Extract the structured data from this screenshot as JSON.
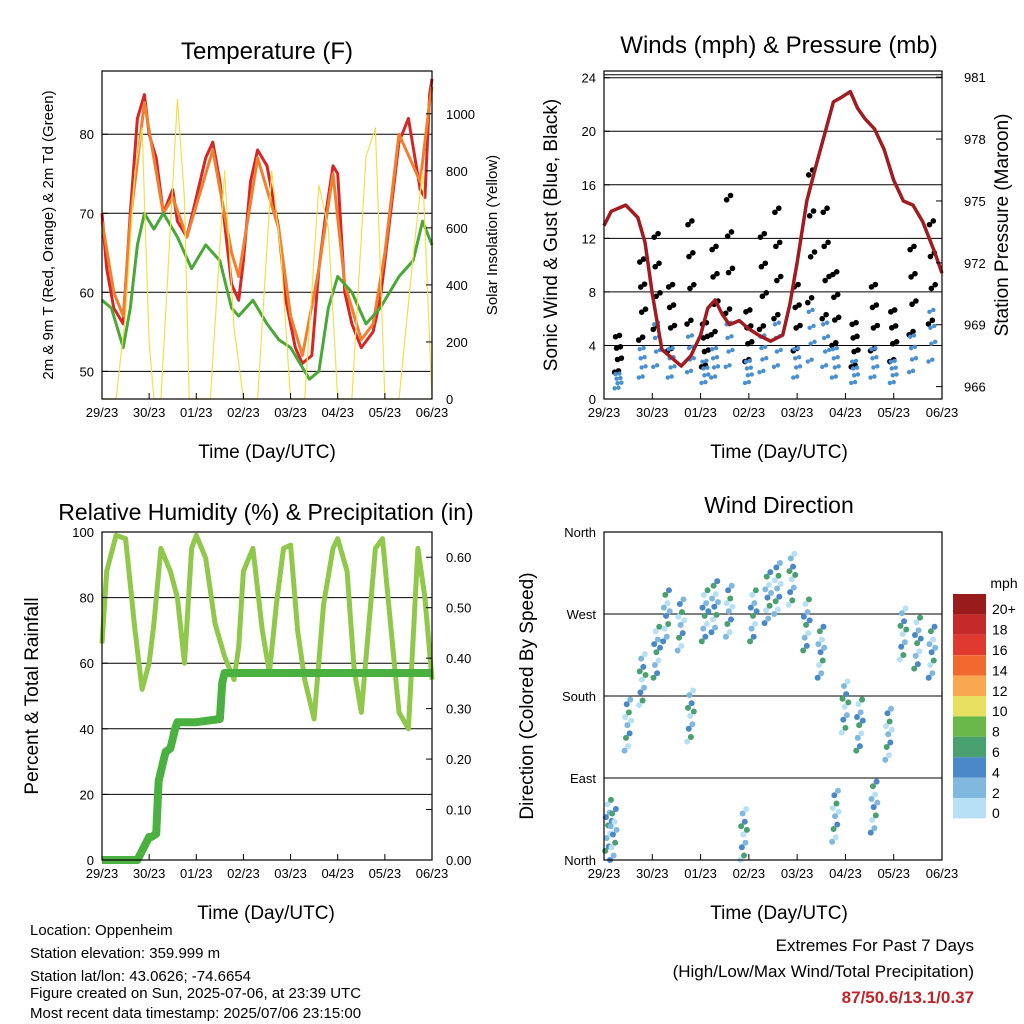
{
  "chart_data": [
    {
      "type": "line",
      "title": "Temperature (F)",
      "xlabel": "Time (Day/UTC)",
      "ylabel": "2m & 9m T (Red, Orange) & 2m Td (Green)",
      "y2label": "Solar Insolation (Yellow)",
      "x_ticks": [
        "29/23",
        "30/23",
        "01/23",
        "02/23",
        "03/23",
        "04/23",
        "05/23",
        "06/23"
      ],
      "ylim": [
        46.5,
        88
      ],
      "y_ticks": [
        50,
        60,
        70,
        80
      ],
      "y2lim": [
        0,
        1150
      ],
      "y2_ticks": [
        0,
        200,
        400,
        600,
        800,
        1000
      ],
      "grid": "horizontal",
      "series": [
        {
          "color": "#d62728",
          "x": [
            0,
            0.1,
            0.25,
            0.45,
            0.6,
            0.75,
            0.9,
            1.0,
            1.15,
            1.3,
            1.5,
            1.6,
            1.8,
            2.0,
            2.2,
            2.35,
            2.5,
            2.75,
            2.9,
            3.0,
            3.15,
            3.3,
            3.5,
            3.75,
            3.9,
            4.0,
            4.1,
            4.25,
            4.45,
            4.6,
            4.75,
            4.9,
            5.0,
            5.15,
            5.3,
            5.5,
            5.75,
            5.9,
            6.0,
            6.1,
            6.3,
            6.5,
            6.75,
            6.85,
            6.95,
            7.0
          ],
          "values": [
            70,
            63,
            58,
            56,
            70,
            82,
            85,
            80,
            77,
            70,
            73,
            69,
            67,
            72,
            77,
            79,
            74,
            61,
            59,
            64,
            74,
            78,
            76,
            68,
            59,
            56,
            53,
            51,
            52,
            63,
            70,
            76,
            75,
            60,
            56,
            53,
            55,
            59,
            64,
            69,
            79,
            82,
            73,
            72,
            85,
            87
          ]
        },
        {
          "color": "#f08030",
          "x": [
            0,
            0.25,
            0.45,
            0.6,
            0.9,
            1.3,
            1.5,
            1.8,
            2.35,
            2.75,
            2.9,
            3.3,
            3.75,
            4.0,
            4.25,
            4.6,
            4.9,
            5.15,
            5.5,
            5.75,
            6.0,
            6.3,
            6.75,
            6.95,
            7.0
          ],
          "values": [
            69,
            60,
            57,
            69,
            84,
            70,
            72,
            67,
            78,
            65,
            62,
            77,
            68,
            57,
            52,
            63,
            75,
            61,
            54,
            56,
            65,
            80,
            74,
            84,
            86
          ]
        },
        {
          "color": "#4aa838",
          "x": [
            0,
            0.2,
            0.45,
            0.6,
            0.75,
            0.9,
            1.1,
            1.3,
            1.6,
            1.9,
            2.2,
            2.5,
            2.75,
            2.9,
            3.2,
            3.5,
            3.75,
            4.0,
            4.2,
            4.4,
            4.6,
            4.8,
            5.0,
            5.3,
            5.6,
            5.9,
            6.1,
            6.3,
            6.6,
            6.8,
            7.0
          ],
          "values": [
            59,
            58,
            53,
            58,
            66,
            70,
            68,
            70,
            67,
            63,
            66,
            64,
            58,
            57,
            59,
            56,
            54,
            53,
            51,
            49,
            50,
            58,
            62,
            60,
            56,
            58,
            60,
            62,
            64,
            69,
            66
          ]
        },
        {
          "color": "#f0e050",
          "x": [
            0,
            0.3,
            0.5,
            0.7,
            0.85,
            1.0,
            1.1,
            1.25,
            1.45,
            1.6,
            1.75,
            1.85,
            2.0,
            2.3,
            2.6,
            2.8,
            3.0,
            3.3,
            3.6,
            3.8,
            4.0,
            4.3,
            4.6,
            4.8,
            5.0,
            5.3,
            5.6,
            5.8,
            6.0,
            6.3,
            6.6,
            6.8,
            7.0
          ],
          "values": [
            0,
            0,
            300,
            800,
            950,
            200,
            0,
            0,
            600,
            1050,
            700,
            0,
            0,
            0,
            800,
            250,
            0,
            0,
            800,
            500,
            0,
            0,
            750,
            600,
            0,
            0,
            850,
            950,
            0,
            0,
            500,
            800,
            0
          ]
        }
      ]
    },
    {
      "type": "scatter",
      "title": "Winds (mph) & Pressure (mb)",
      "xlabel": "Time (Day/UTC)",
      "ylabel": "Sonic Wind & Gust (Blue, Black)",
      "y2label": "Station Pressure (Maroon)",
      "x_ticks": [
        "29/23",
        "30/23",
        "01/23",
        "02/23",
        "03/23",
        "04/23",
        "05/23",
        "06/23"
      ],
      "ylim": [
        0,
        24.5
      ],
      "y_ticks": [
        0,
        4,
        8,
        12,
        16,
        20,
        24
      ],
      "y2lim": [
        965.4,
        981.3
      ],
      "y2_ticks": [
        966,
        969,
        972,
        975,
        978,
        981
      ],
      "grid": "horizontal",
      "series": [
        {
          "color": "#000000",
          "x": [
            0.3,
            0.8,
            1.1,
            1.4,
            1.8,
            2.1,
            2.3,
            2.6,
            3.0,
            3.3,
            3.6,
            4.0,
            4.3,
            4.6,
            4.8,
            5.2,
            5.6,
            6.0,
            6.4,
            6.8
          ],
          "values": [
            5,
            11,
            13,
            9,
            14,
            6,
            12,
            16,
            7,
            13,
            15,
            9,
            18,
            15,
            10,
            6,
            9,
            7,
            12,
            14
          ]
        },
        {
          "color": "#4a90d0",
          "x": [
            0.3,
            0.8,
            1.1,
            1.4,
            1.8,
            2.1,
            2.3,
            2.6,
            3.0,
            3.3,
            3.6,
            4.0,
            4.3,
            4.6,
            4.8,
            5.2,
            5.6,
            6.0,
            6.4,
            6.8
          ],
          "values": [
            2,
            4,
            6,
            4,
            5,
            3,
            4,
            6,
            3,
            5,
            6,
            4,
            7,
            6,
            4,
            3,
            4,
            3,
            5,
            7
          ]
        },
        {
          "color": "#a01c20",
          "x": [
            0,
            0.15,
            0.45,
            0.7,
            0.85,
            1.0,
            1.2,
            1.45,
            1.6,
            1.8,
            2.0,
            2.15,
            2.3,
            2.45,
            2.6,
            2.8,
            3.0,
            3.2,
            3.45,
            3.7,
            3.85,
            4.0,
            4.2,
            4.4,
            4.6,
            4.75,
            4.9,
            5.1,
            5.25,
            5.4,
            5.6,
            5.8,
            6.0,
            6.2,
            6.4,
            6.6,
            6.85,
            7.0
          ],
          "values": [
            973.8,
            974.5,
            974.8,
            974.2,
            973.0,
            970.5,
            967.8,
            967.3,
            967.0,
            967.5,
            968.5,
            969.8,
            970.2,
            969.5,
            969.0,
            969.2,
            968.8,
            968.5,
            968.2,
            968.5,
            970.0,
            972.0,
            975.0,
            976.8,
            978.5,
            979.8,
            980.0,
            980.3,
            979.5,
            979.0,
            978.5,
            977.5,
            976.0,
            975.0,
            974.8,
            974.0,
            972.5,
            971.5
          ]
        }
      ]
    },
    {
      "type": "line",
      "title": "Relative Humidity (%) & Precipitation (in)",
      "xlabel": "Time (Day/UTC)",
      "ylabel": "Percent & Total Rainfall",
      "x_ticks": [
        "29/23",
        "30/23",
        "01/23",
        "02/23",
        "03/23",
        "04/23",
        "05/23",
        "06/23"
      ],
      "ylim": [
        0,
        100
      ],
      "y_ticks": [
        0,
        20,
        40,
        60,
        80,
        100
      ],
      "y2lim": [
        0,
        0.65
      ],
      "y2_ticks": [
        "0.00",
        "0.10",
        "0.20",
        "0.30",
        "0.40",
        "0.50",
        "0.60"
      ],
      "grid": "horizontal",
      "series": [
        {
          "color": "#8fc84a",
          "x": [
            0,
            0.1,
            0.3,
            0.5,
            0.7,
            0.85,
            1.0,
            1.1,
            1.25,
            1.45,
            1.6,
            1.75,
            1.9,
            2.0,
            2.2,
            2.4,
            2.6,
            2.8,
            2.9,
            3.0,
            3.2,
            3.4,
            3.55,
            3.7,
            3.85,
            4.0,
            4.15,
            4.3,
            4.5,
            4.7,
            4.9,
            5.0,
            5.2,
            5.35,
            5.5,
            5.65,
            5.8,
            5.95,
            6.1,
            6.3,
            6.5,
            6.7,
            6.85,
            7.0
          ],
          "values": [
            66,
            88,
            99,
            98,
            70,
            52,
            60,
            72,
            95,
            88,
            80,
            60,
            95,
            99,
            92,
            72,
            62,
            55,
            65,
            88,
            95,
            70,
            57,
            78,
            95,
            96,
            70,
            55,
            43,
            78,
            95,
            98,
            88,
            58,
            45,
            70,
            95,
            98,
            75,
            45,
            40,
            95,
            80,
            55
          ]
        },
        {
          "color": "#4ab040",
          "x": [
            0,
            0.5,
            0.75,
            1.0,
            1.05,
            1.15,
            1.2,
            1.35,
            1.45,
            1.55,
            1.6,
            2.0,
            2.5,
            2.55,
            2.6,
            3.0,
            4.0,
            5.0,
            6.0,
            7.0
          ],
          "values": [
            0,
            0,
            0,
            7,
            7,
            8,
            24,
            33,
            34,
            40,
            42,
            42,
            43,
            54,
            57,
            57,
            57,
            57,
            57,
            57
          ]
        }
      ]
    },
    {
      "type": "scatter",
      "title": "Wind Direction",
      "xlabel": "Time (Day/UTC)",
      "ylabel": "Direction (Colored By Speed)",
      "x_ticks": [
        "29/23",
        "30/23",
        "01/23",
        "02/23",
        "03/23",
        "04/23",
        "05/23",
        "06/23"
      ],
      "y_ticks": [
        "North",
        "East",
        "South",
        "West",
        "North"
      ],
      "ylim": [
        0,
        360
      ],
      "grid": "horizontal",
      "legend_title": "mph",
      "legend": [
        "20+",
        "18",
        "16",
        "14",
        "12",
        "10",
        "8",
        "6",
        "4",
        "2",
        "0"
      ],
      "legend_colors": [
        "#991c1c",
        "#c42a2a",
        "#e03a30",
        "#f06a30",
        "#f8a850",
        "#e8e060",
        "#6ab84a",
        "#4aa070",
        "#4a88c8",
        "#80b8e0",
        "#b8e0f4"
      ],
      "series": [
        {
          "x": [
            0.1,
            0.2,
            0.5,
            0.8,
            1.1,
            1.3,
            1.6,
            1.8,
            2.1,
            2.3,
            2.6,
            2.9,
            3.1,
            3.4,
            3.6,
            3.9,
            4.2,
            4.5,
            4.8,
            5.0,
            5.3,
            5.6,
            5.9,
            6.2,
            6.5,
            6.8
          ],
          "values": [
            40,
            30,
            150,
            200,
            230,
            270,
            260,
            160,
            270,
            280,
            275,
            30,
            270,
            290,
            300,
            310,
            260,
            230,
            50,
            170,
            150,
            60,
            140,
            250,
            240,
            230
          ]
        }
      ]
    }
  ],
  "info": {
    "location": "Location: Oppenheim",
    "elevation": "Station elevation: 359.999 m",
    "latlon": "Station lat/lon: 43.0626; -74.6654",
    "created": "Figure created on Sun, 2025-07-06, at 23:39 UTC",
    "latest": "Most recent data timestamp: 2025/07/06 23:15:00"
  },
  "extremes": {
    "line1": "Extremes For Past 7 Days",
    "line2": "(High/Low/Max Wind/Total Precipitation)",
    "values": "87/50.6/13.1/0.37"
  }
}
